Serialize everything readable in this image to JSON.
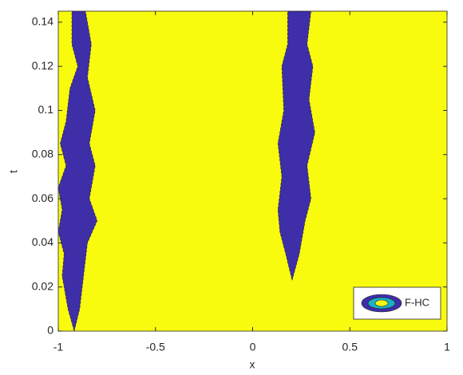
{
  "chart_data": {
    "type": "contour",
    "xlabel": "x",
    "ylabel": "t",
    "xlim": [
      -1,
      1
    ],
    "ylim": [
      0,
      0.145
    ],
    "xticks": [
      -1,
      -0.5,
      0,
      0.5,
      1
    ],
    "yticks": [
      0,
      0.02,
      0.04,
      0.06,
      0.08,
      0.1,
      0.12,
      0.14
    ],
    "background_color": "#f9fb0e",
    "legend": "southeast",
    "series": [
      {
        "name": "F-HC",
        "color": "#3e2ea8",
        "regions": [
          {
            "x": [
              -0.918,
              -0.89,
              -0.87,
              -0.85,
              -0.8,
              -0.84,
              -0.81,
              -0.84,
              -0.81,
              -0.85,
              -0.83,
              -0.86,
              -0.93,
              -0.93,
              -0.9,
              -0.94,
              -0.96,
              -0.99,
              -0.96,
              -1,
              -0.98,
              -1,
              -0.97,
              -0.98,
              -0.95
            ],
            "y": [
              0,
              0.01,
              0.025,
              0.04,
              0.05,
              0.06,
              0.075,
              0.085,
              0.1,
              0.115,
              0.13,
              0.145,
              0.145,
              0.13,
              0.12,
              0.11,
              0.095,
              0.085,
              0.075,
              0.065,
              0.055,
              0.045,
              0.035,
              0.025,
              0.01
            ]
          },
          {
            "x": [
              0.203,
              0.24,
              0.27,
              0.3,
              0.28,
              0.32,
              0.29,
              0.31,
              0.28,
              0.3,
              0.18,
              0.18,
              0.15,
              0.16,
              0.13,
              0.15,
              0.13,
              0.14,
              0.17
            ],
            "y": [
              0.023,
              0.035,
              0.05,
              0.06,
              0.075,
              0.09,
              0.105,
              0.12,
              0.13,
              0.145,
              0.145,
              0.13,
              0.12,
              0.1,
              0.085,
              0.07,
              0.055,
              0.045,
              0.035
            ]
          }
        ]
      }
    ]
  }
}
